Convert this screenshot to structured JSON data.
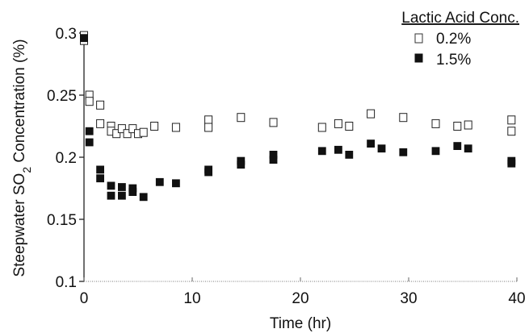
{
  "chart_data": {
    "type": "scatter",
    "xlabel": "Time (hr)",
    "ylabel_prefix": "Steepwater SO",
    "ylabel_subscript": "2",
    "ylabel_suffix": " Concentration (%)",
    "xlim": [
      0,
      40
    ],
    "ylim": [
      0.1,
      0.3
    ],
    "xticks": [
      "0",
      "10",
      "20",
      "30",
      "40"
    ],
    "yticks": [
      "0.1",
      "0.15",
      "0.2",
      "0.25",
      "0.3"
    ],
    "xtick_values": [
      0,
      10,
      20,
      30,
      40
    ],
    "ytick_values": [
      0.1,
      0.15,
      0.2,
      0.25,
      0.3
    ],
    "grid": false,
    "legend_title": "Lactic Acid Conc.",
    "legend_position": "top-right",
    "series": [
      {
        "name": "0.2%",
        "marker": "open-square",
        "color": "#222222",
        "x": [
          0,
          0,
          0.5,
          0.5,
          1.5,
          1.5,
          2.5,
          2.5,
          3.0,
          3.5,
          4.0,
          4.5,
          5.0,
          5.5,
          6.5,
          8.5,
          11.5,
          11.5,
          14.5,
          17.5,
          22.0,
          23.5,
          24.5,
          26.5,
          29.5,
          32.5,
          34.5,
          35.5,
          39.5,
          39.5
        ],
        "y": [
          0.294,
          0.298,
          0.25,
          0.245,
          0.242,
          0.227,
          0.225,
          0.221,
          0.219,
          0.223,
          0.219,
          0.223,
          0.219,
          0.22,
          0.225,
          0.224,
          0.23,
          0.224,
          0.232,
          0.228,
          0.224,
          0.227,
          0.225,
          0.235,
          0.232,
          0.227,
          0.225,
          0.226,
          0.23,
          0.221
        ]
      },
      {
        "name": "1.5%",
        "marker": "filled-square",
        "color": "#111111",
        "x": [
          0,
          0.5,
          0.5,
          1.5,
          1.5,
          2.5,
          2.5,
          3.5,
          3.5,
          4.5,
          4.5,
          5.5,
          7.0,
          8.5,
          11.5,
          11.5,
          14.5,
          14.5,
          17.5,
          17.5,
          22.0,
          23.5,
          24.5,
          26.5,
          27.5,
          29.5,
          32.5,
          34.5,
          35.5,
          39.5,
          39.5
        ],
        "y": [
          0.296,
          0.221,
          0.212,
          0.19,
          0.183,
          0.177,
          0.169,
          0.176,
          0.169,
          0.175,
          0.172,
          0.168,
          0.18,
          0.179,
          0.19,
          0.188,
          0.197,
          0.194,
          0.202,
          0.198,
          0.205,
          0.206,
          0.202,
          0.211,
          0.207,
          0.204,
          0.205,
          0.209,
          0.207,
          0.197,
          0.195
        ]
      }
    ]
  }
}
